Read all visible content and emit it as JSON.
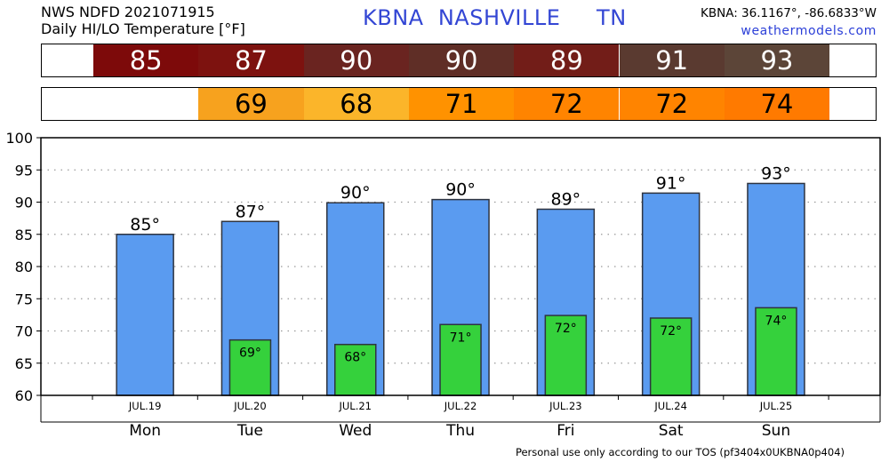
{
  "header": {
    "product_line1": "NWS NDFD 2021071915",
    "product_line2": "Daily HI/LO Temperature [°F]",
    "station_title": "KBNA  NASHVILLE     TN",
    "coords": "KBNA: 36.1167°, -86.6833°W",
    "site": "weathermodels.com"
  },
  "colors": {
    "hi_bar": "#5a9bf0",
    "lo_bar": "#35d13c",
    "hi_cells": [
      "#7d0a0a",
      "#7d120f",
      "#6a2420",
      "#5f2e26",
      "#721d18",
      "#5a3a30",
      "#5c4538"
    ],
    "lo_cells": [
      "#f7a21e",
      "#fbb52a",
      "#ff9200",
      "#ff8400",
      "#ff8400",
      "#ff7a00"
    ]
  },
  "footer": "Personal use only according to our TOS (pf3404x0UKBNA0p404)",
  "chart_data": {
    "type": "bar",
    "days": [
      "Mon",
      "Tue",
      "Wed",
      "Thu",
      "Fri",
      "Sat",
      "Sun"
    ],
    "dates": [
      "JUL.19",
      "JUL.20",
      "JUL.21",
      "JUL.22",
      "JUL.23",
      "JUL.24",
      "JUL.25"
    ],
    "series": [
      {
        "values": [
          85,
          87,
          90,
          90,
          89,
          91,
          93
        ],
        "plotted": [
          85.0,
          87.0,
          89.9,
          90.4,
          88.9,
          91.4,
          92.9
        ],
        "labels": [
          "85°",
          "87°",
          "90°",
          "90°",
          "89°",
          "91°",
          "93°"
        ]
      },
      {
        "values": [
          null,
          69,
          68,
          71,
          72,
          72,
          74
        ],
        "plotted": [
          null,
          68.6,
          67.9,
          71.0,
          72.4,
          72.0,
          73.6
        ],
        "labels": [
          "",
          "69°",
          "68°",
          "71°",
          "72°",
          "72°",
          "74°"
        ]
      }
    ],
    "hi_row": [
      "85",
      "87",
      "90",
      "90",
      "89",
      "91",
      "93"
    ],
    "lo_row": [
      "",
      "69",
      "68",
      "71",
      "72",
      "72",
      "74"
    ],
    "ylim": [
      60,
      100
    ],
    "yticks": [
      "60",
      "65",
      "70",
      "75",
      "80",
      "85",
      "90",
      "95",
      "100"
    ],
    "grid": true
  }
}
